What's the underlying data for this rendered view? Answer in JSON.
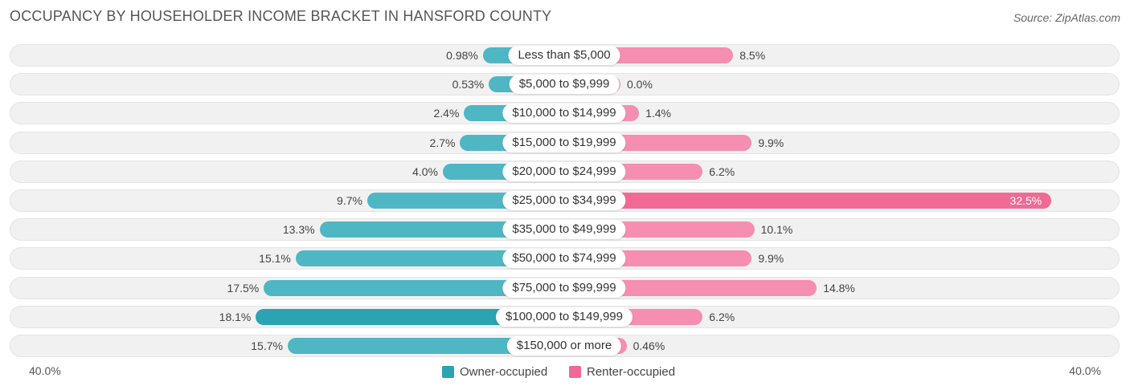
{
  "title": "OCCUPANCY BY HOUSEHOLDER INCOME BRACKET IN HANSFORD COUNTY",
  "source": "Source: ZipAtlas.com",
  "colors": {
    "owner": "#4fb6c4",
    "owner_dark": "#2aa3b3",
    "renter": "#f58eb0",
    "renter_dark": "#f06a95"
  },
  "axis": {
    "left_label": "40.0%",
    "right_label": "40.0%"
  },
  "legend": {
    "owner": "Owner-occupied",
    "renter": "Renter-occupied"
  },
  "chart_data": {
    "type": "bar",
    "orientation": "horizontal-diverging",
    "title": "OCCUPANCY BY HOUSEHOLDER INCOME BRACKET IN HANSFORD COUNTY",
    "xlim": [
      -40,
      40
    ],
    "categories": [
      "Less than $5,000",
      "$5,000 to $9,999",
      "$10,000 to $14,999",
      "$15,000 to $19,999",
      "$20,000 to $24,999",
      "$25,000 to $34,999",
      "$35,000 to $49,999",
      "$50,000 to $74,999",
      "$75,000 to $99,999",
      "$100,000 to $149,999",
      "$150,000 or more"
    ],
    "series": [
      {
        "name": "Owner-occupied",
        "values": [
          0.98,
          0.53,
          2.4,
          2.7,
          4.0,
          9.7,
          13.3,
          15.1,
          17.5,
          18.1,
          15.7
        ],
        "labels": [
          "0.98%",
          "0.53%",
          "2.4%",
          "2.7%",
          "4.0%",
          "9.7%",
          "13.3%",
          "15.1%",
          "17.5%",
          "18.1%",
          "15.7%"
        ]
      },
      {
        "name": "Renter-occupied",
        "values": [
          8.5,
          0.0,
          1.4,
          9.9,
          6.2,
          32.5,
          10.1,
          9.9,
          14.8,
          6.2,
          0.46
        ],
        "labels": [
          "8.5%",
          "0.0%",
          "1.4%",
          "9.9%",
          "6.2%",
          "32.5%",
          "10.1%",
          "9.9%",
          "14.8%",
          "6.2%",
          "0.46%"
        ]
      }
    ]
  }
}
